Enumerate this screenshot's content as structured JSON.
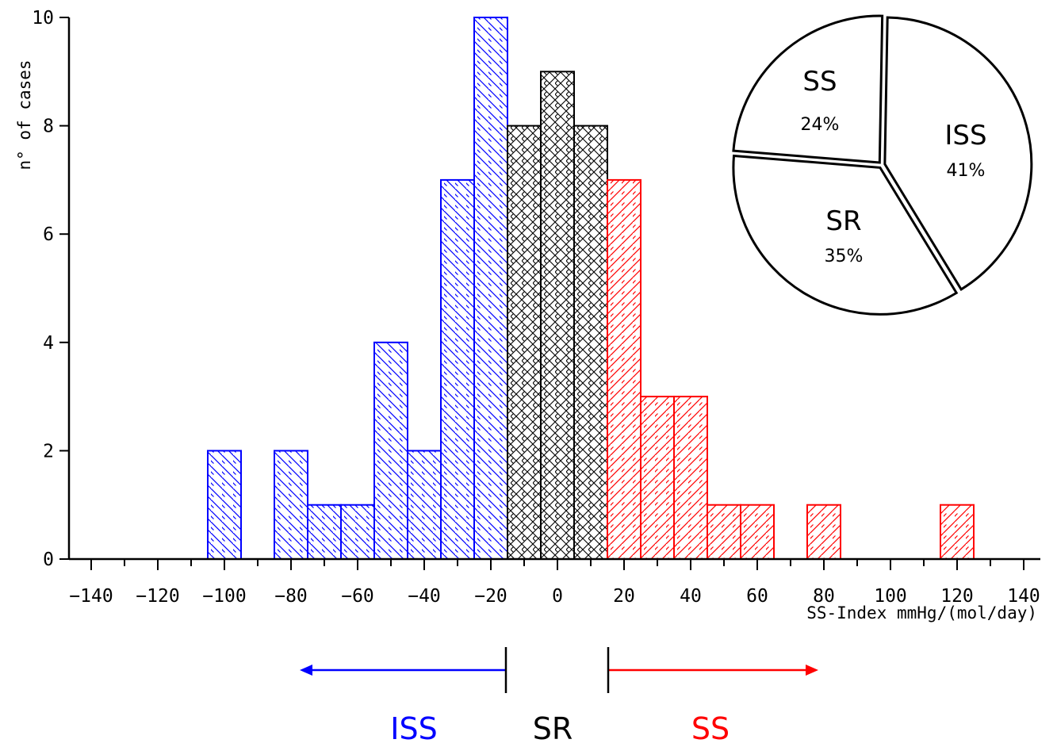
{
  "chart_data": [
    {
      "type": "bar",
      "subtype": "histogram",
      "ylabel": "n° of cases",
      "xlabel": "SS-Index mmHg/(mol/day)",
      "xlim": [
        -140,
        140
      ],
      "ylim": [
        0,
        10
      ],
      "bin_width": 10,
      "x_ticks": [
        "−140",
        "−120",
        "−100",
        "−80",
        "−60",
        "−40",
        "−20",
        "0",
        "20",
        "40",
        "60",
        "80",
        "100",
        "120",
        "140"
      ],
      "y_ticks": [
        "0",
        "2",
        "4",
        "6",
        "8",
        "10"
      ],
      "series": [
        {
          "name": "ISS",
          "color": "#0000ff",
          "pattern": "back-diagonal hatch",
          "x": [
            -100,
            -80,
            -70,
            -60,
            -50,
            -40,
            -30,
            -20
          ],
          "values": [
            2,
            2,
            1,
            1,
            4,
            2,
            7,
            10
          ]
        },
        {
          "name": "SR",
          "color": "#000000",
          "pattern": "cross hatch",
          "x": [
            -10,
            0,
            10
          ],
          "values": [
            8,
            9,
            8
          ]
        },
        {
          "name": "SS",
          "color": "#ff0000",
          "pattern": "forward-diagonal hatch",
          "x": [
            20,
            30,
            40,
            50,
            60,
            80,
            120
          ],
          "values": [
            7,
            3,
            3,
            1,
            1,
            1,
            1
          ]
        }
      ],
      "region_labels": [
        {
          "label": "ISS",
          "color": "#0000ff",
          "arrow": "left",
          "from": -15
        },
        {
          "label": "SR",
          "color": "#000000"
        },
        {
          "label": "SS",
          "color": "#ff0000",
          "arrow": "right",
          "from": 15
        }
      ]
    },
    {
      "type": "pie",
      "slices": [
        {
          "label": "ISS",
          "value": 41,
          "value_label": "41%"
        },
        {
          "label": "SR",
          "value": 35,
          "value_label": "35%"
        },
        {
          "label": "SS",
          "value": 24,
          "value_label": "24%"
        }
      ]
    }
  ]
}
